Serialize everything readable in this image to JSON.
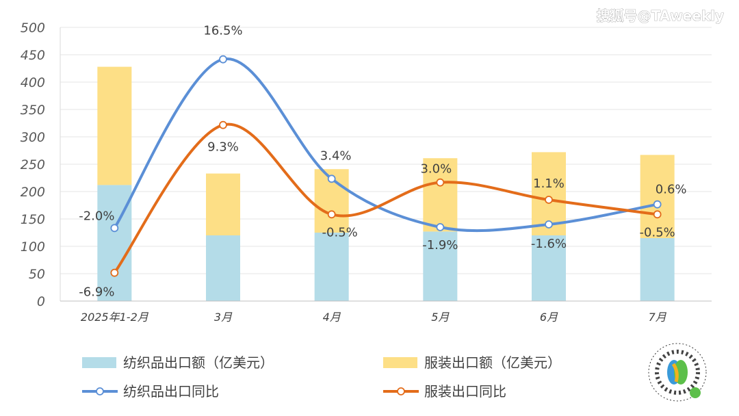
{
  "watermark": "搜狐号@TAweekly",
  "chart_data": {
    "type": "bar",
    "stacked": true,
    "categories": [
      "2025年1-2月",
      "3月",
      "4月",
      "5月",
      "6月",
      "7月"
    ],
    "y_left": {
      "min": 0,
      "max": 500,
      "step": 50
    },
    "y_right_hidden": {
      "min": -10,
      "max": 20
    },
    "series": [
      {
        "name": "纺织品出口额（亿美元）",
        "kind": "bar",
        "color": "#b4dce8",
        "values": [
          212,
          120,
          125,
          127,
          120,
          115
        ]
      },
      {
        "name": "服装出口额（亿美元）",
        "kind": "bar",
        "color": "#fddf86",
        "values": [
          216,
          113,
          116,
          134,
          152,
          152
        ]
      },
      {
        "name": "纺织品出口同比",
        "kind": "line",
        "color": "#5b8fd6",
        "values": [
          -2.0,
          16.5,
          3.4,
          -1.9,
          -1.6,
          0.6
        ],
        "labels": [
          "-2.0%",
          "16.5%",
          "3.4%",
          "-1.9%",
          "-1.6%",
          "0.6%"
        ]
      },
      {
        "name": "服装出口同比",
        "kind": "line",
        "color": "#e36c1a",
        "values": [
          -6.9,
          9.3,
          -0.5,
          3.0,
          1.1,
          -0.5
        ],
        "labels": [
          "-6.9%",
          "9.3%",
          "-0.5%",
          "3.0%",
          "1.1%",
          "-0.5%"
        ]
      }
    ],
    "legend_position": "bottom"
  }
}
